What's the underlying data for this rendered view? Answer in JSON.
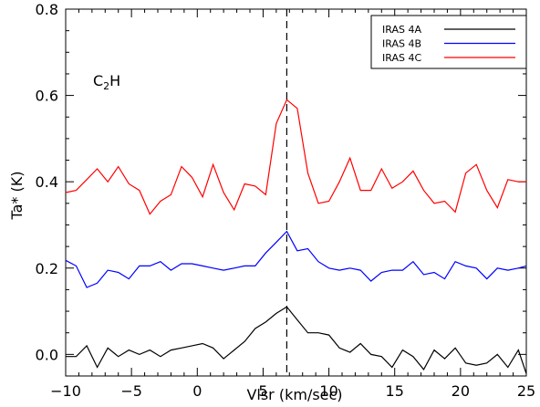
{
  "chart_data": {
    "type": "line",
    "xlabel": "Vlsr (km/sec)",
    "ylabel": "Ta* (K)",
    "xlim": [
      -10,
      25
    ],
    "ylim": [
      -0.05,
      0.8
    ],
    "xticks": [
      -10,
      -5,
      0,
      5,
      10,
      15,
      20,
      25
    ],
    "xtick_labels": [
      "−10",
      "−5",
      "0",
      "5",
      "10",
      "15",
      "20",
      "25"
    ],
    "yticks": [
      0.0,
      0.2,
      0.4,
      0.6,
      0.8
    ],
    "ytick_labels": [
      "0.0",
      "0.2",
      "0.4",
      "0.6",
      "0.8"
    ],
    "vline": {
      "x": 6.8,
      "style": "dashed"
    },
    "annotation": {
      "main": "C",
      "sub": "2",
      "tail": "H"
    },
    "legend_position": "top-right",
    "x": [
      -10.0,
      -9.2,
      -8.4,
      -7.6,
      -6.8,
      -6.0,
      -5.2,
      -4.4,
      -3.6,
      -2.8,
      -2.0,
      -1.2,
      -0.4,
      0.4,
      1.2,
      2.0,
      2.8,
      3.6,
      4.4,
      5.2,
      6.0,
      6.8,
      7.6,
      8.4,
      9.2,
      10.0,
      10.8,
      11.6,
      12.4,
      13.2,
      14.0,
      14.8,
      15.6,
      16.4,
      17.2,
      18.0,
      18.8,
      19.6,
      20.4,
      21.2,
      22.0,
      22.8,
      23.6,
      24.4,
      25.0
    ],
    "series": [
      {
        "name": "IRAS 4A",
        "color": "#000000",
        "values": [
          -0.005,
          -0.005,
          0.02,
          -0.03,
          0.015,
          -0.005,
          0.01,
          0.0,
          0.01,
          -0.005,
          0.01,
          0.015,
          0.02,
          0.025,
          0.015,
          -0.01,
          0.01,
          0.03,
          0.06,
          0.075,
          0.095,
          0.11,
          0.08,
          0.05,
          0.05,
          0.045,
          0.015,
          0.005,
          0.025,
          0.0,
          -0.005,
          -0.03,
          0.01,
          -0.005,
          -0.035,
          0.01,
          -0.01,
          0.015,
          -0.02,
          -0.025,
          -0.02,
          0.0,
          -0.03,
          0.01,
          -0.045
        ]
      },
      {
        "name": "IRAS 4B",
        "color": "#0000ff",
        "values": [
          0.218,
          0.205,
          0.155,
          0.165,
          0.195,
          0.19,
          0.175,
          0.205,
          0.205,
          0.215,
          0.195,
          0.21,
          0.21,
          0.205,
          0.2,
          0.195,
          0.2,
          0.205,
          0.205,
          0.235,
          0.26,
          0.285,
          0.24,
          0.245,
          0.215,
          0.2,
          0.195,
          0.2,
          0.195,
          0.17,
          0.19,
          0.195,
          0.195,
          0.215,
          0.185,
          0.19,
          0.175,
          0.215,
          0.205,
          0.2,
          0.175,
          0.2,
          0.195,
          0.2,
          0.205
        ]
      },
      {
        "name": "IRAS 4C",
        "color": "#ff0000",
        "values": [
          0.375,
          0.38,
          0.405,
          0.43,
          0.4,
          0.435,
          0.395,
          0.38,
          0.325,
          0.355,
          0.37,
          0.435,
          0.41,
          0.365,
          0.44,
          0.375,
          0.335,
          0.395,
          0.39,
          0.37,
          0.535,
          0.59,
          0.57,
          0.42,
          0.35,
          0.355,
          0.4,
          0.455,
          0.38,
          0.38,
          0.43,
          0.385,
          0.4,
          0.425,
          0.38,
          0.35,
          0.355,
          0.33,
          0.42,
          0.44,
          0.38,
          0.34,
          0.405,
          0.4,
          0.4
        ]
      }
    ]
  }
}
